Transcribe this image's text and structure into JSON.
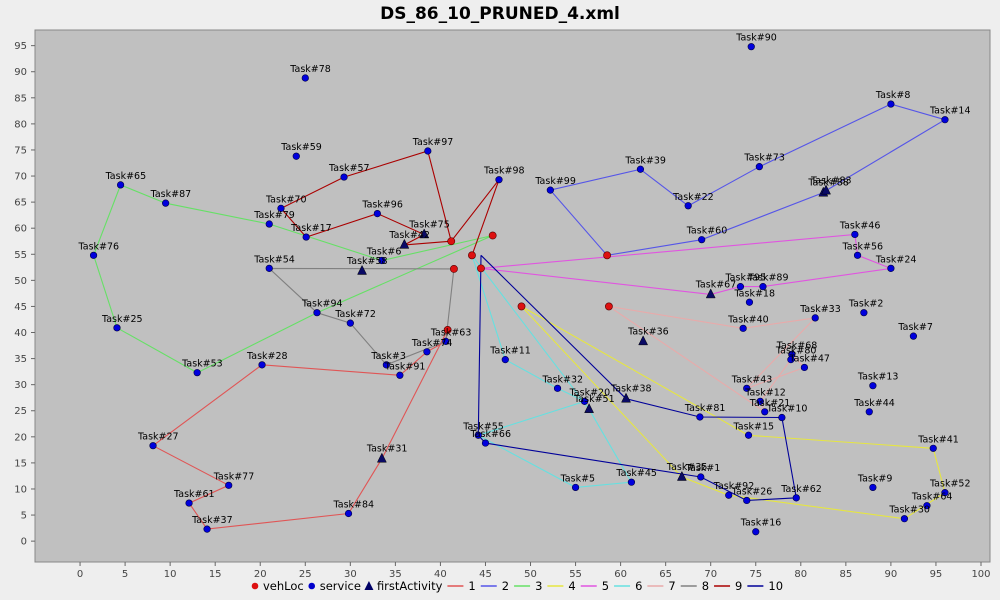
{
  "chart_data": {
    "type": "scatter",
    "title": "DS_86_10_PRUNED_4.xml",
    "xlim": [
      -5,
      101
    ],
    "ylim": [
      -4,
      98
    ],
    "x_ticks": [
      0,
      5,
      10,
      15,
      20,
      25,
      30,
      35,
      40,
      45,
      50,
      55,
      60,
      65,
      70,
      75,
      80,
      85,
      90,
      95,
      100
    ],
    "y_ticks": [
      0,
      5,
      10,
      15,
      20,
      25,
      30,
      35,
      40,
      45,
      50,
      55,
      60,
      65,
      70,
      75,
      80,
      85,
      90,
      95
    ],
    "plot_background": "#c0c0c0",
    "grid": false,
    "legend_position": "bottom",
    "legend": [
      {
        "label": "vehLoc",
        "kind": "dot",
        "color": "#dd1111"
      },
      {
        "label": "service",
        "kind": "dot",
        "color": "#0000cc"
      },
      {
        "label": "firstActivity",
        "kind": "triangle",
        "color": "#000066"
      },
      {
        "label": "1",
        "kind": "line",
        "color": "#e05555"
      },
      {
        "label": "2",
        "kind": "line",
        "color": "#5555e8"
      },
      {
        "label": "3",
        "kind": "line",
        "color": "#66e066"
      },
      {
        "label": "4",
        "kind": "line",
        "color": "#e6e640"
      },
      {
        "label": "5",
        "kind": "line",
        "color": "#e055e0"
      },
      {
        "label": "6",
        "kind": "line",
        "color": "#66e0e0"
      },
      {
        "label": "7",
        "kind": "line",
        "color": "#e8aaaa"
      },
      {
        "label": "8",
        "kind": "line",
        "color": "#808080"
      },
      {
        "label": "9",
        "kind": "line",
        "color": "#aa0000"
      },
      {
        "label": "10",
        "kind": "line",
        "color": "#000099"
      }
    ],
    "vehLoc": [
      [
        41.2,
        57.5
      ],
      [
        45.8,
        58.6
      ],
      [
        43.5,
        54.8
      ],
      [
        44.5,
        52.3
      ],
      [
        58.5,
        54.8
      ],
      [
        49,
        45
      ],
      [
        58.7,
        45
      ],
      [
        41.5,
        52.2
      ],
      [
        40.8,
        40.5
      ]
    ],
    "tasks": [
      {
        "label": "Task#1",
        "x": 68.9,
        "y": 12.3
      },
      {
        "label": "Task#2",
        "x": 87,
        "y": 43.8
      },
      {
        "label": "Task#3",
        "x": 34,
        "y": 33.8
      },
      {
        "label": "Task#5",
        "x": 55,
        "y": 10.3
      },
      {
        "label": "Task#6",
        "x": 33.5,
        "y": 53.8
      },
      {
        "label": "Task#7",
        "x": 92.5,
        "y": 39.3
      },
      {
        "label": "Task#8",
        "x": 90,
        "y": 83.8
      },
      {
        "label": "Task#9",
        "x": 88,
        "y": 10.3
      },
      {
        "label": "Task#10",
        "x": 77.9,
        "y": 23.7
      },
      {
        "label": "Task#11",
        "x": 47.2,
        "y": 34.8
      },
      {
        "label": "Task#12",
        "x": 75.5,
        "y": 26.8
      },
      {
        "label": "Task#13",
        "x": 88,
        "y": 29.8
      },
      {
        "label": "Task#14",
        "x": 96,
        "y": 80.8
      },
      {
        "label": "Task#15",
        "x": 74.2,
        "y": 20.3
      },
      {
        "label": "Task#16",
        "x": 75,
        "y": 1.8
      },
      {
        "label": "Task#17",
        "x": 25.1,
        "y": 58.3
      },
      {
        "label": "Task#18",
        "x": 74.3,
        "y": 45.8
      },
      {
        "label": "Task#20",
        "x": 56,
        "y": 26.8
      },
      {
        "label": "Task#21",
        "x": 76,
        "y": 24.8
      },
      {
        "label": "Task#22",
        "x": 67.5,
        "y": 64.3
      },
      {
        "label": "Task#24",
        "x": 90,
        "y": 52.3
      },
      {
        "label": "Task#25",
        "x": 4.1,
        "y": 40.9
      },
      {
        "label": "Task#26",
        "x": 74,
        "y": 7.8
      },
      {
        "label": "Task#27",
        "x": 8.1,
        "y": 18.3
      },
      {
        "label": "Task#28",
        "x": 20.2,
        "y": 33.8
      },
      {
        "label": "Task#30",
        "x": 91.5,
        "y": 4.3
      },
      {
        "label": "Task#32",
        "x": 53,
        "y": 29.3
      },
      {
        "label": "Task#33",
        "x": 81.6,
        "y": 42.8
      },
      {
        "label": "Task#37",
        "x": 14.1,
        "y": 2.3
      },
      {
        "label": "Task#39",
        "x": 62.2,
        "y": 71.3
      },
      {
        "label": "Task#40",
        "x": 73.6,
        "y": 40.8
      },
      {
        "label": "Task#41",
        "x": 94.7,
        "y": 17.8
      },
      {
        "label": "Task#43",
        "x": 74,
        "y": 29.3
      },
      {
        "label": "Task#44",
        "x": 87.6,
        "y": 24.8
      },
      {
        "label": "Task#45",
        "x": 61.2,
        "y": 11.3
      },
      {
        "label": "Task#46",
        "x": 86,
        "y": 58.8
      },
      {
        "label": "Task#47",
        "x": 80.4,
        "y": 33.3
      },
      {
        "label": "Task#52",
        "x": 96,
        "y": 9.3
      },
      {
        "label": "Task#53",
        "x": 13,
        "y": 32.3
      },
      {
        "label": "Task#54",
        "x": 21,
        "y": 52.3
      },
      {
        "label": "Task#55",
        "x": 44.2,
        "y": 20.3
      },
      {
        "label": "Task#56",
        "x": 86.3,
        "y": 54.8
      },
      {
        "label": "Task#57",
        "x": 29.3,
        "y": 69.8
      },
      {
        "label": "Task#59",
        "x": 24,
        "y": 73.8
      },
      {
        "label": "Task#60",
        "x": 69,
        "y": 57.8
      },
      {
        "label": "Task#61",
        "x": 12.1,
        "y": 7.3
      },
      {
        "label": "Task#62",
        "x": 79.5,
        "y": 8.3
      },
      {
        "label": "Task#63",
        "x": 40.6,
        "y": 38.3
      },
      {
        "label": "Task#64",
        "x": 94,
        "y": 6.8
      },
      {
        "label": "Task#65",
        "x": 4.5,
        "y": 68.3
      },
      {
        "label": "Task#66",
        "x": 45,
        "y": 18.8
      },
      {
        "label": "Task#68",
        "x": 79,
        "y": 35.8
      },
      {
        "label": "Task#70",
        "x": 22.3,
        "y": 63.8
      },
      {
        "label": "Task#72",
        "x": 30,
        "y": 41.8
      },
      {
        "label": "Task#73",
        "x": 75.4,
        "y": 71.8
      },
      {
        "label": "Task#74",
        "x": 38.5,
        "y": 36.3
      },
      {
        "label": "Task#76",
        "x": 1.5,
        "y": 54.8
      },
      {
        "label": "Task#77",
        "x": 16.5,
        "y": 10.7
      },
      {
        "label": "Task#78",
        "x": 25,
        "y": 88.8
      },
      {
        "label": "Task#79",
        "x": 21,
        "y": 60.8
      },
      {
        "label": "Task#80",
        "x": 78.9,
        "y": 34.8
      },
      {
        "label": "Task#81",
        "x": 68.8,
        "y": 23.8
      },
      {
        "label": "Task#84",
        "x": 29.8,
        "y": 5.3
      },
      {
        "label": "Task#87",
        "x": 9.5,
        "y": 64.8
      },
      {
        "label": "Task#89",
        "x": 75.8,
        "y": 48.8
      },
      {
        "label": "Task#90",
        "x": 74.5,
        "y": 94.8
      },
      {
        "label": "Task#91",
        "x": 35.5,
        "y": 31.8
      },
      {
        "label": "Task#92",
        "x": 72,
        "y": 8.8
      },
      {
        "label": "Task#94",
        "x": 26.3,
        "y": 43.8
      },
      {
        "label": "Task#95",
        "x": 73.3,
        "y": 48.8
      },
      {
        "label": "Task#96",
        "x": 33,
        "y": 62.8
      },
      {
        "label": "Task#97",
        "x": 38.6,
        "y": 74.8
      },
      {
        "label": "Task#98",
        "x": 46.5,
        "y": 69.3
      },
      {
        "label": "Task#99",
        "x": 52.2,
        "y": 67.3
      }
    ],
    "first_activities": [
      {
        "label": "Task#31",
        "x": 33.5,
        "y": 15.8
      },
      {
        "label": "Task#75",
        "x": 38.2,
        "y": 58.8
      },
      {
        "label": "Task#42",
        "x": 36,
        "y": 56.8
      },
      {
        "label": "Task#58",
        "x": 31.3,
        "y": 51.8
      },
      {
        "label": "Task#67",
        "x": 70,
        "y": 47.3
      },
      {
        "label": "Task#36",
        "x": 62.5,
        "y": 38.3
      },
      {
        "label": "Task#38",
        "x": 60.6,
        "y": 27.3
      },
      {
        "label": "Task#51",
        "x": 56.5,
        "y": 25.3
      },
      {
        "label": "Task#35",
        "x": 66.8,
        "y": 12.3
      },
      {
        "label": "Task#88",
        "x": 82.5,
        "y": 66.8
      },
      {
        "label": "Task#83",
        "x": 82.8,
        "y": 67.2
      }
    ],
    "routes": [
      {
        "name": "1",
        "color": "#e05555",
        "points": [
          [
            40.8,
            40.5
          ],
          [
            33.5,
            15.8
          ],
          [
            29.8,
            5.3
          ],
          [
            14.1,
            2.3
          ],
          [
            12.1,
            7.3
          ],
          [
            16.5,
            10.7
          ],
          [
            8.1,
            18.3
          ],
          [
            20.2,
            33.8
          ],
          [
            35.5,
            31.8
          ],
          [
            38.5,
            36.3
          ],
          [
            40.6,
            38.3
          ],
          [
            40.8,
            40.5
          ]
        ]
      },
      {
        "name": "2",
        "color": "#5555e8",
        "points": [
          [
            58.5,
            54.8
          ],
          [
            52.2,
            67.3
          ],
          [
            62.2,
            71.3
          ],
          [
            67.5,
            64.3
          ],
          [
            75.4,
            71.8
          ],
          [
            90,
            83.8
          ],
          [
            96,
            80.8
          ],
          [
            82.8,
            67.2
          ],
          [
            82.5,
            66.8
          ],
          [
            69,
            57.8
          ],
          [
            58.5,
            54.8
          ]
        ]
      },
      {
        "name": "3",
        "color": "#66e066",
        "points": [
          [
            45.8,
            58.6
          ],
          [
            33.5,
            53.8
          ],
          [
            21,
            60.8
          ],
          [
            9.5,
            64.8
          ],
          [
            4.5,
            68.3
          ],
          [
            1.5,
            54.8
          ],
          [
            4.1,
            40.9
          ],
          [
            13,
            32.3
          ],
          [
            26.3,
            43.8
          ],
          [
            45.8,
            58.6
          ]
        ]
      },
      {
        "name": "4",
        "color": "#e6e640",
        "points": [
          [
            49,
            45
          ],
          [
            66.8,
            12.3
          ],
          [
            72,
            8.8
          ],
          [
            91.5,
            4.3
          ],
          [
            96,
            9.3
          ],
          [
            94.7,
            17.8
          ],
          [
            74.2,
            20.3
          ],
          [
            49,
            45
          ]
        ]
      },
      {
        "name": "5",
        "color": "#e055e0",
        "points": [
          [
            44.5,
            52.3
          ],
          [
            86,
            58.8
          ],
          [
            86.3,
            54.8
          ],
          [
            90,
            52.3
          ],
          [
            75.8,
            48.8
          ],
          [
            73.3,
            48.8
          ],
          [
            70,
            47.3
          ],
          [
            44.5,
            52.3
          ]
        ]
      },
      {
        "name": "6",
        "color": "#66e0e0",
        "points": [
          [
            43.5,
            54.8
          ],
          [
            47.2,
            34.8
          ],
          [
            53,
            29.3
          ],
          [
            56,
            26.8
          ],
          [
            44.2,
            20.3
          ],
          [
            55,
            10.3
          ],
          [
            61.2,
            11.3
          ],
          [
            56.5,
            25.3
          ],
          [
            43.5,
            54.8
          ]
        ]
      },
      {
        "name": "7",
        "color": "#e8aaaa",
        "points": [
          [
            58.7,
            45
          ],
          [
            73.6,
            40.8
          ],
          [
            81.6,
            42.8
          ],
          [
            74,
            29.3
          ],
          [
            80.4,
            33.3
          ],
          [
            79,
            35.8
          ],
          [
            78.9,
            34.8
          ],
          [
            75.5,
            26.8
          ],
          [
            76,
            24.8
          ],
          [
            58.7,
            45
          ]
        ]
      },
      {
        "name": "8",
        "color": "#808080",
        "points": [
          [
            41.5,
            52.2
          ],
          [
            21,
            52.3
          ],
          [
            26.3,
            43.8
          ],
          [
            30,
            41.8
          ],
          [
            34,
            33.8
          ],
          [
            40.6,
            38.3
          ],
          [
            41.5,
            52.2
          ]
        ]
      },
      {
        "name": "9",
        "color": "#aa0000",
        "points": [
          [
            41.2,
            57.5
          ],
          [
            38.6,
            74.8
          ],
          [
            29.3,
            69.8
          ],
          [
            22.3,
            63.8
          ],
          [
            25.1,
            58.3
          ],
          [
            33,
            62.8
          ],
          [
            38.2,
            58.8
          ],
          [
            36,
            56.8
          ],
          [
            41.2,
            57.5
          ],
          [
            46.5,
            69.3
          ],
          [
            43.5,
            54.8
          ]
        ]
      },
      {
        "name": "10",
        "color": "#000099",
        "points": [
          [
            44.5,
            54.8
          ],
          [
            60.6,
            27.3
          ],
          [
            68.8,
            23.8
          ],
          [
            77.9,
            23.7
          ],
          [
            79.5,
            8.3
          ],
          [
            74,
            7.8
          ],
          [
            68.9,
            12.3
          ],
          [
            45,
            18.8
          ],
          [
            44.2,
            20.3
          ],
          [
            44.5,
            54.8
          ]
        ]
      }
    ]
  }
}
